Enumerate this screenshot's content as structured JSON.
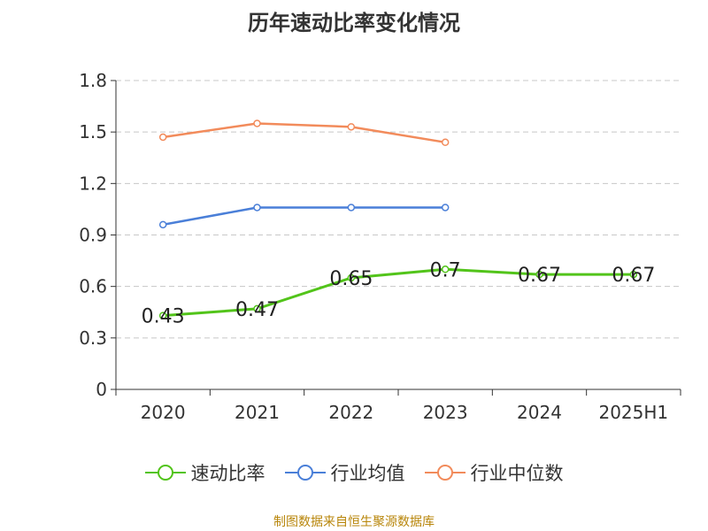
{
  "chart_data": {
    "type": "line",
    "title": "历年速动比率变化情况",
    "categories": [
      "2020",
      "2021",
      "2022",
      "2023",
      "2024",
      "2025H1"
    ],
    "y_ticks": [
      "0",
      "0.3",
      "0.6",
      "0.9",
      "1.2",
      "1.5",
      "1.8"
    ],
    "ylim": [
      0,
      1.8
    ],
    "grid": true,
    "legend_position": "bottom",
    "series": [
      {
        "name": "速动比率",
        "color": "#52c41a",
        "values": [
          0.43,
          0.47,
          0.65,
          0.7,
          0.67,
          0.67
        ],
        "labels": [
          "0.43",
          "0.47",
          "0.65",
          "0.7",
          "0.67",
          "0.67"
        ]
      },
      {
        "name": "行业均值",
        "color": "#4a7fd8",
        "values": [
          0.96,
          1.06,
          1.06,
          1.06,
          null,
          null
        ]
      },
      {
        "name": "行业中位数",
        "color": "#f28b5b",
        "values": [
          1.47,
          1.55,
          1.53,
          1.44,
          null,
          null
        ]
      }
    ]
  },
  "source": "制图数据来自恒生聚源数据库"
}
